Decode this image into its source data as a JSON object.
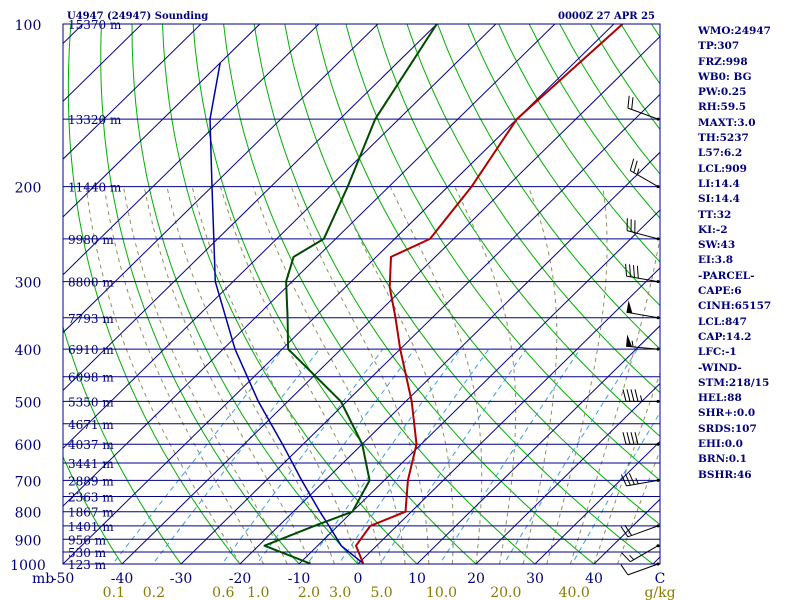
{
  "header": {
    "station": "U4947 (24947) Sounding",
    "time": "0000Z 27 APR 25"
  },
  "indices": [
    "WMO:24947",
    "TP:307",
    "FRZ:998",
    "WB0: BG",
    "PW:0.25",
    "RH:59.5",
    "MAXT:3.0",
    "TH:5237",
    "L57:6.2",
    "LCL:909",
    "LI:14.4",
    "SI:14.4",
    "TT:32",
    "KI:-2",
    "SW:43",
    "EI:3.8",
    "-PARCEL-",
    "CAPE:6",
    "CINH:65157",
    "LCL:847",
    "CAP:14.2",
    "LFC:-1",
    "-WIND-",
    "STM:218/15",
    "HEL:88",
    "SHR+:0.0",
    "SRDS:107",
    "EHI:0.0",
    "BRN:0.1",
    "BSHR:46"
  ],
  "colors": {
    "temperature": "#b00000",
    "dewpoint": "#004a00",
    "parcel": "#0000a0",
    "isobars": "#00008a",
    "isotherms": "#00008a",
    "dry_adiabats": "#00b000",
    "moist_adiabats": "#909060",
    "mixing_ratio": "#3aa0e0",
    "labels": "#00007a",
    "mixing_labels": "#8a7a00"
  },
  "chart_data": {
    "type": "skew-t",
    "x_unit": "C",
    "mixing_ratio_unit": "g/kg",
    "y_axis": "pressure (hPa), log scale",
    "pressure_range": [
      1000,
      100
    ],
    "pressure_ticks": [
      100,
      200,
      300,
      400,
      500,
      600,
      700,
      800,
      900,
      1000
    ],
    "x_ticks": [
      -50,
      -40,
      -30,
      -20,
      -10,
      0,
      10,
      20,
      30,
      40
    ],
    "x_tick_labels": [
      "-50",
      "-40",
      "-30",
      "-20",
      "-10",
      "0",
      "10",
      "20",
      "30",
      "40"
    ],
    "x_axis_unit_label": "C",
    "mb_label": "mb",
    "mixing_ratio_labels": [
      "0.1",
      "0.2",
      "0.6",
      "1.0",
      "2.0",
      "3.0",
      "5.0",
      "10.0",
      "20.0",
      "40.0"
    ],
    "height_labels": [
      {
        "p": 100,
        "label": "15370 m"
      },
      {
        "p": 150,
        "label": "13320 m"
      },
      {
        "p": 200,
        "label": "11440 m"
      },
      {
        "p": 250,
        "label": "9980 m"
      },
      {
        "p": 300,
        "label": "8800 m"
      },
      {
        "p": 350,
        "label": "7793 m"
      },
      {
        "p": 400,
        "label": "6910 m"
      },
      {
        "p": 450,
        "label": "6098 m"
      },
      {
        "p": 500,
        "label": "5350 m"
      },
      {
        "p": 550,
        "label": "4671 m"
      },
      {
        "p": 600,
        "label": "4037 m"
      },
      {
        "p": 650,
        "label": "3441 m"
      },
      {
        "p": 700,
        "label": "2889 m"
      },
      {
        "p": 750,
        "label": "2363 m"
      },
      {
        "p": 800,
        "label": "1867 m"
      },
      {
        "p": 850,
        "label": "1401 m"
      },
      {
        "p": 900,
        "label": "956 m"
      },
      {
        "p": 950,
        "label": "530 m"
      },
      {
        "p": 1000,
        "label": "123 m"
      }
    ],
    "temperature": [
      {
        "p": 998,
        "t": 0.8
      },
      {
        "p": 925,
        "t": -3.5
      },
      {
        "p": 850,
        "t": -4.5
      },
      {
        "p": 800,
        "t": -1.0
      },
      {
        "p": 700,
        "t": -6.0
      },
      {
        "p": 600,
        "t": -10.8
      },
      {
        "p": 500,
        "t": -19.0
      },
      {
        "p": 400,
        "t": -30.0
      },
      {
        "p": 350,
        "t": -36.2
      },
      {
        "p": 307,
        "t": -42.5
      },
      {
        "p": 270,
        "t": -47.5
      },
      {
        "p": 250,
        "t": -44.0
      },
      {
        "p": 200,
        "t": -46.0
      },
      {
        "p": 150,
        "t": -50.0
      },
      {
        "p": 100,
        "t": -48.5
      }
    ],
    "dewpoint": [
      {
        "p": 998,
        "t": -8.2
      },
      {
        "p": 925,
        "t": -19.0
      },
      {
        "p": 850,
        "t": -14.0
      },
      {
        "p": 800,
        "t": -10.0
      },
      {
        "p": 700,
        "t": -12.5
      },
      {
        "p": 600,
        "t": -20.0
      },
      {
        "p": 500,
        "t": -31.0
      },
      {
        "p": 400,
        "t": -49.0
      },
      {
        "p": 350,
        "t": -54.5
      },
      {
        "p": 300,
        "t": -61.0
      },
      {
        "p": 270,
        "t": -64.0
      },
      {
        "p": 250,
        "t": -62.0
      },
      {
        "p": 200,
        "t": -67.0
      },
      {
        "p": 150,
        "t": -74.0
      },
      {
        "p": 100,
        "t": -80.0
      }
    ],
    "parcel": [
      {
        "p": 998,
        "t": 0.8
      },
      {
        "p": 925,
        "t": -6.0
      },
      {
        "p": 850,
        "t": -11.5
      },
      {
        "p": 800,
        "t": -15.5
      },
      {
        "p": 700,
        "t": -24.0
      },
      {
        "p": 600,
        "t": -33.5
      },
      {
        "p": 500,
        "t": -45.0
      },
      {
        "p": 400,
        "t": -58.0
      },
      {
        "p": 300,
        "t": -73.0
      },
      {
        "p": 200,
        "t": -90.0
      },
      {
        "p": 150,
        "t": -102.0
      },
      {
        "p": 118,
        "t": -110.0
      }
    ],
    "wind_barbs": [
      {
        "p": 1000,
        "dir": 250,
        "kt": 10
      },
      {
        "p": 925,
        "dir": 240,
        "kt": 15
      },
      {
        "p": 850,
        "dir": 250,
        "kt": 20
      },
      {
        "p": 700,
        "dir": 260,
        "kt": 35
      },
      {
        "p": 600,
        "dir": 270,
        "kt": 40
      },
      {
        "p": 500,
        "dir": 270,
        "kt": 45
      },
      {
        "p": 400,
        "dir": 275,
        "kt": 55
      },
      {
        "p": 350,
        "dir": 280,
        "kt": 50
      },
      {
        "p": 300,
        "dir": 280,
        "kt": 40
      },
      {
        "p": 250,
        "dir": 285,
        "kt": 30
      },
      {
        "p": 200,
        "dir": 300,
        "kt": 25
      },
      {
        "p": 150,
        "dir": 290,
        "kt": 20
      }
    ]
  }
}
